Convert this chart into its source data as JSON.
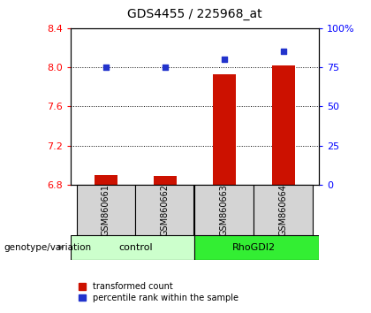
{
  "title": "GDS4455 / 225968_at",
  "samples": [
    "GSM860661",
    "GSM860662",
    "GSM860663",
    "GSM860664"
  ],
  "transformed_count": [
    6.9,
    6.89,
    7.93,
    8.02
  ],
  "percentile_rank": [
    75,
    75,
    80,
    85
  ],
  "ylim_left": [
    6.8,
    8.4
  ],
  "ylim_right": [
    0,
    100
  ],
  "left_ticks": [
    6.8,
    7.2,
    7.6,
    8.0,
    8.4
  ],
  "right_ticks": [
    0,
    25,
    50,
    75,
    100
  ],
  "right_tick_labels": [
    "0",
    "25",
    "50",
    "75",
    "100%"
  ],
  "bar_color": "#cc1100",
  "dot_color": "#2233cc",
  "control_color": "#ccffcc",
  "rhodgi2_color": "#33ee33",
  "sample_box_color": "#d4d4d4",
  "group_label": "genotype/variation",
  "legend1": "transformed count",
  "legend2": "percentile rank within the sample",
  "bar_width": 0.4,
  "figsize": [
    4.2,
    3.54
  ],
  "dpi": 100
}
